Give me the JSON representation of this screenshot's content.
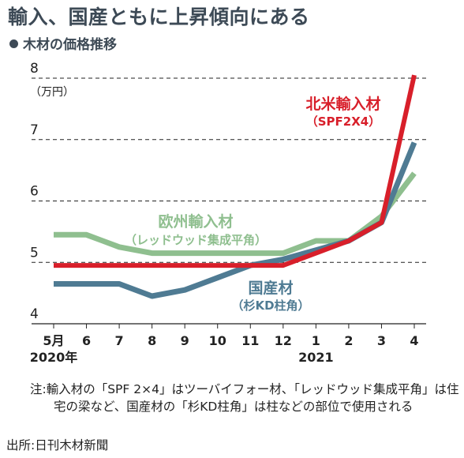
{
  "title": "輸入、国産ともに上昇傾向にある",
  "subtitle": "木材の価格推移",
  "chart_data": {
    "type": "line",
    "unit_label": "（万円）",
    "categories": [
      "5月",
      "6",
      "7",
      "8",
      "9",
      "10",
      "11",
      "12",
      "1",
      "2",
      "3",
      "4"
    ],
    "year_labels": [
      {
        "at": "5月",
        "text": "2020年"
      },
      {
        "at": "1",
        "text": "2021"
      }
    ],
    "ylim": [
      4,
      8
    ],
    "yticks": [
      4,
      5,
      6,
      7,
      8
    ],
    "grid": true,
    "series": [
      {
        "name": "欧州輸入材",
        "sublabel": "（レッドウッド集成平角）",
        "color": "#8fbf8f",
        "values": [
          5.45,
          5.45,
          5.25,
          5.15,
          5.15,
          5.15,
          5.15,
          5.15,
          5.35,
          5.35,
          5.75,
          6.45
        ]
      },
      {
        "name": "国産材",
        "sublabel": "（杉KD柱角）",
        "color": "#4f7b93",
        "values": [
          4.65,
          4.65,
          4.65,
          4.45,
          4.55,
          4.75,
          4.95,
          5.05,
          5.2,
          5.35,
          5.65,
          6.95
        ]
      },
      {
        "name": "北米輸入材",
        "sublabel": "（SPF2X4）",
        "color": "#d81f2a",
        "values": [
          4.95,
          4.95,
          4.95,
          4.95,
          4.95,
          4.95,
          4.95,
          4.95,
          5.15,
          5.35,
          5.65,
          8.05
        ]
      }
    ]
  },
  "note": "注:輸入材の「SPF 2×4」はツーバイフォー材、「レッドウッド集成平角」は住宅の梁など、国産材の「杉KD柱角」は柱などの部位で使用される",
  "source": "出所:日刊木材新聞"
}
